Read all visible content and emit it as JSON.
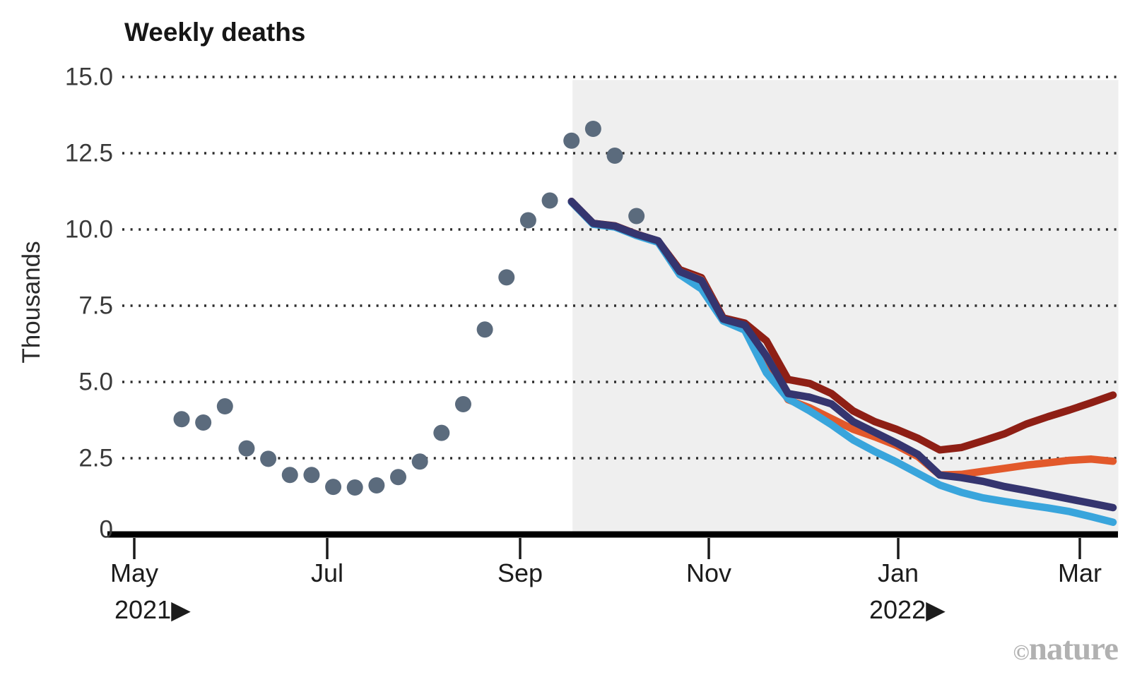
{
  "chart_data": {
    "type": "line",
    "title": "Weekly deaths",
    "ylabel": "Thousands",
    "ylim": [
      0,
      15
    ],
    "grid": "dotted-horizontal",
    "legend": "none",
    "yticks": [
      15.0,
      12.5,
      10.0,
      7.5,
      5.0,
      2.5,
      0
    ],
    "ytick_labels": [
      "15.0",
      "12.5",
      "10.0",
      "7.5",
      "5.0",
      "2.5",
      "0"
    ],
    "xtick_labels": [
      "May",
      "Jul",
      "Sep",
      "Nov",
      "Jan",
      "Mar"
    ],
    "year_label_left": "2021▶",
    "year_label_right": "2022▶",
    "x_unit": "weeks (week 0 = mid-May 2021)",
    "forecast_region": {
      "start_week": 18.05,
      "end_week": 43.25,
      "top_value": 14.9,
      "color": "#efefef"
    },
    "observed": {
      "name": "observed-weekly-deaths",
      "marker": "dot",
      "color": "#5b6b7d",
      "start_week": 0,
      "values": [
        3.78,
        3.67,
        4.2,
        2.82,
        2.48,
        1.95,
        1.95,
        1.56,
        1.54,
        1.61,
        1.88,
        2.39,
        3.33,
        4.27,
        6.72,
        8.43,
        10.3,
        10.95,
        12.91,
        13.3,
        12.42,
        10.44
      ]
    },
    "series": [
      {
        "name": "forecast-dark-red",
        "color": "#8e1f15",
        "start_week": 18,
        "values": [
          10.92,
          10.2,
          10.12,
          9.85,
          9.62,
          8.68,
          8.42,
          7.1,
          6.93,
          6.35,
          5.08,
          4.95,
          4.62,
          4.05,
          3.7,
          3.45,
          3.15,
          2.77,
          2.85,
          3.07,
          3.3,
          3.62,
          3.86,
          4.08,
          4.32,
          4.57
        ]
      },
      {
        "name": "forecast-orange",
        "color": "#e2592b",
        "start_week": 18,
        "values": [
          10.9,
          10.18,
          10.1,
          9.83,
          9.6,
          8.62,
          8.35,
          7.05,
          6.85,
          5.7,
          4.42,
          4.15,
          3.8,
          3.45,
          3.2,
          2.92,
          2.55,
          1.95,
          1.97,
          2.07,
          2.17,
          2.27,
          2.35,
          2.43,
          2.47,
          2.4
        ]
      },
      {
        "name": "forecast-light-blue",
        "color": "#39a5dc",
        "start_week": 18,
        "values": [
          10.9,
          10.17,
          10.08,
          9.8,
          9.58,
          8.52,
          8.05,
          7.0,
          6.7,
          5.3,
          4.45,
          4.05,
          3.6,
          3.1,
          2.72,
          2.38,
          2.0,
          1.62,
          1.38,
          1.2,
          1.08,
          0.97,
          0.87,
          0.75,
          0.58,
          0.4
        ]
      },
      {
        "name": "forecast-navy",
        "color": "#35356f",
        "start_week": 18,
        "values": [
          10.92,
          10.2,
          10.11,
          9.84,
          9.63,
          8.62,
          8.33,
          7.06,
          6.86,
          5.85,
          4.62,
          4.5,
          4.28,
          3.7,
          3.35,
          3.0,
          2.62,
          1.95,
          1.86,
          1.74,
          1.57,
          1.44,
          1.3,
          1.16,
          1.02,
          0.88
        ]
      }
    ],
    "watermark": {
      "copyright_symbol": "©",
      "brand": "nature"
    }
  }
}
